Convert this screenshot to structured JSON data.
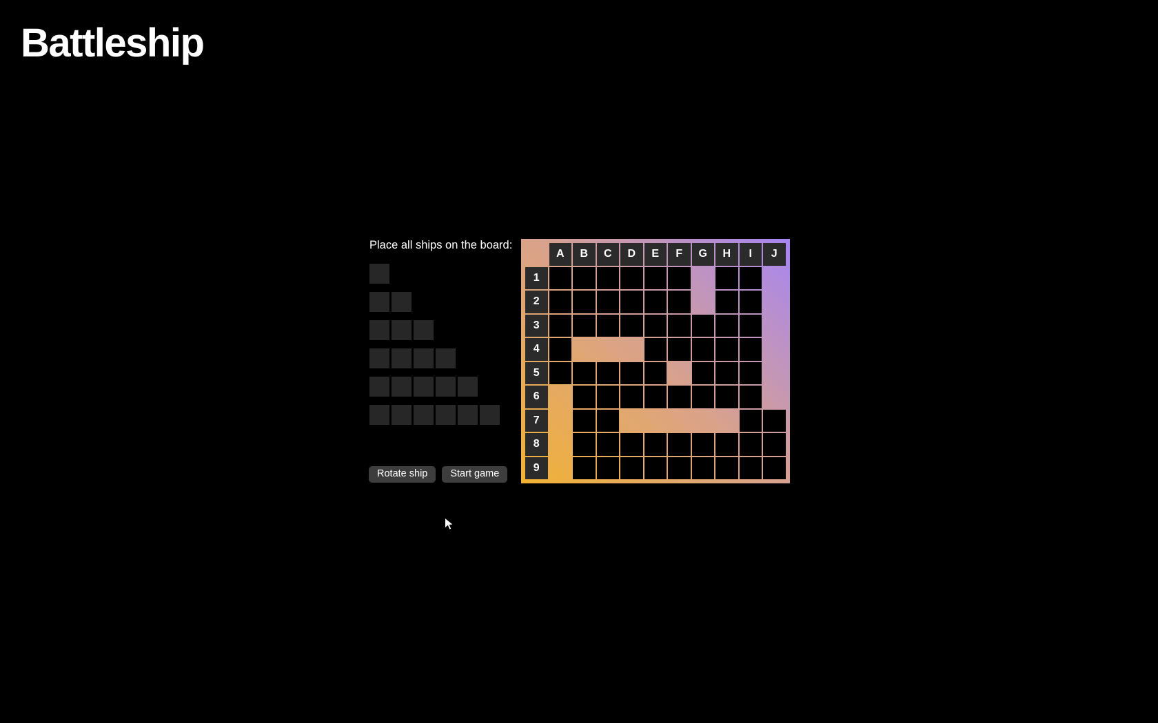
{
  "title": "Battleship",
  "panel": {
    "instruction": "Place all ships on the board:",
    "tray_ships": [
      1,
      2,
      3,
      4,
      5,
      6
    ],
    "buttons": [
      {
        "label": "Rotate ship"
      },
      {
        "label": "Start game"
      }
    ]
  },
  "board": {
    "columns": [
      "A",
      "B",
      "C",
      "D",
      "E",
      "F",
      "G",
      "H",
      "I",
      "J"
    ],
    "rows": [
      "1",
      "2",
      "3",
      "4",
      "5",
      "6",
      "7",
      "8",
      "9"
    ],
    "placed_ships": [
      {
        "size": 1,
        "cells": [
          "F5"
        ]
      },
      {
        "size": 2,
        "cells": [
          "G1",
          "G2"
        ]
      },
      {
        "size": 3,
        "cells": [
          "B4",
          "C4",
          "D4"
        ]
      },
      {
        "size": 4,
        "cells": [
          "A6",
          "A7",
          "A8",
          "A9"
        ]
      },
      {
        "size": 5,
        "cells": [
          "D7",
          "E7",
          "F7",
          "G7",
          "H7"
        ]
      },
      {
        "size": 6,
        "cells": [
          "J1",
          "J2",
          "J3",
          "J4",
          "J5",
          "J6"
        ]
      }
    ]
  },
  "colors": {
    "page_background": "#000000",
    "gradient_bottom_left": "#f2b233",
    "gradient_middle": "#d9a28c",
    "gradient_top_right": "#a685f2",
    "header_cell": "#2b2b2b",
    "play_cell": "#000000",
    "tray_cell": "#272727",
    "button_background": "#3d3d3d",
    "text": "#ffffff"
  }
}
